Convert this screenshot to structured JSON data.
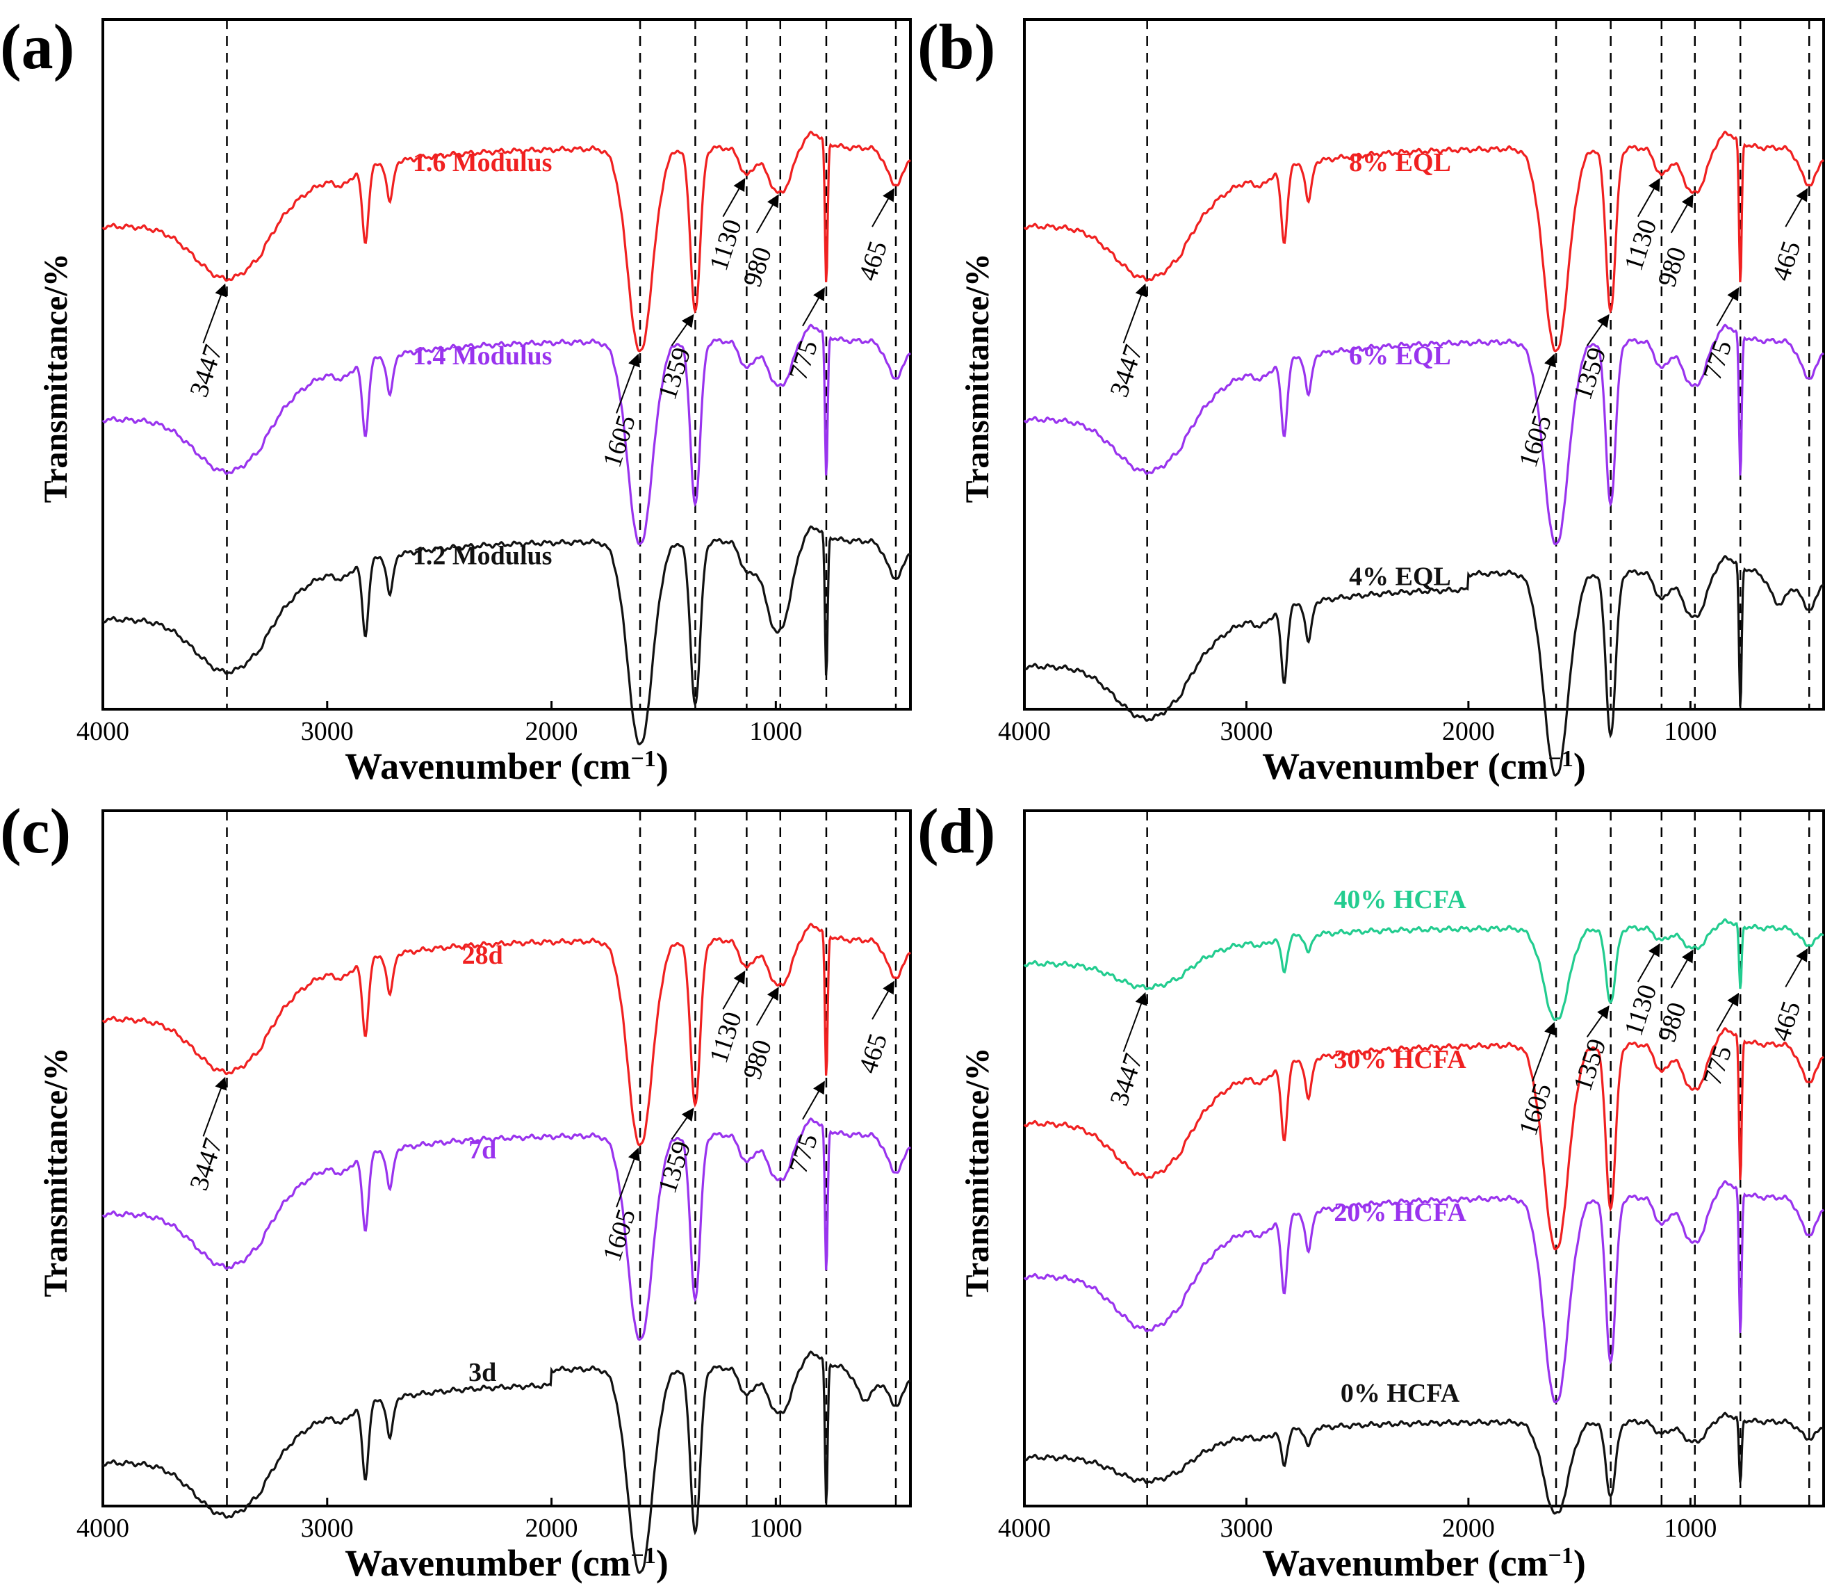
{
  "figure": {
    "type": "multi-panel FTIR spectra"
  },
  "colors": {
    "red": "#f02020",
    "purple": "#9933ee",
    "black": "#111111",
    "green": "#22cc8f"
  },
  "chart_data": [
    {
      "type": "line",
      "panel": "(a)",
      "xlabel": "Wavenumber (cm",
      "xlabel_sup": "−1",
      "xlabel_end": ")",
      "ylabel": "Transmittance/%",
      "xlim": [
        4000,
        400
      ],
      "x_ticks": [
        "4000",
        "3000",
        "2000",
        "1000"
      ],
      "reference_lines": [
        3447,
        1605,
        1359,
        1130,
        980,
        775,
        465
      ],
      "annotations": [
        {
          "text": "3447",
          "x": 3447,
          "dy": 150
        },
        {
          "text": "1605",
          "x": 1605,
          "dy": 150
        },
        {
          "text": "1359",
          "x": 1359,
          "dy": 110
        },
        {
          "text": "1130",
          "x": 1130,
          "dy": 120
        },
        {
          "text": "980",
          "x": 980,
          "dy": 120
        },
        {
          "text": "775",
          "x": 775,
          "dy": 120
        },
        {
          "text": "465",
          "x": 465,
          "dy": 120
        }
      ],
      "series": [
        {
          "name": "1.6 Modulus",
          "color": "red",
          "offset": 0.7,
          "style": "a"
        },
        {
          "name": "1.4 Modulus",
          "color": "purple",
          "offset": 0.42,
          "style": "a"
        },
        {
          "name": "1.2 Modulus",
          "color": "black",
          "offset": 0.13,
          "style": "b"
        }
      ]
    },
    {
      "type": "line",
      "panel": "(b)",
      "xlabel": "Wavenumber (cm",
      "xlabel_sup": "−1",
      "xlabel_end": ")",
      "ylabel": "Transmittance/%",
      "xlim": [
        4000,
        400
      ],
      "x_ticks": [
        "4000",
        "3000",
        "2000",
        "1000"
      ],
      "reference_lines": [
        3447,
        1605,
        1359,
        1130,
        980,
        775,
        465
      ],
      "annotations": [
        {
          "text": "3447",
          "x": 3447,
          "dy": 150
        },
        {
          "text": "1605",
          "x": 1605,
          "dy": 150
        },
        {
          "text": "1359",
          "x": 1359,
          "dy": 110
        },
        {
          "text": "1130",
          "x": 1130,
          "dy": 120
        },
        {
          "text": "980",
          "x": 980,
          "dy": 120
        },
        {
          "text": "775",
          "x": 775,
          "dy": 120
        },
        {
          "text": "465",
          "x": 465,
          "dy": 120
        }
      ],
      "series": [
        {
          "name": "8% EQL",
          "color": "red",
          "offset": 0.7,
          "style": "a"
        },
        {
          "name": "6% EQL",
          "color": "purple",
          "offset": 0.42,
          "style": "a"
        },
        {
          "name": "4% EQL",
          "color": "black",
          "offset": 0.1,
          "style": "c"
        }
      ]
    },
    {
      "type": "line",
      "panel": "(c)",
      "xlabel": "Wavenumber (cm",
      "xlabel_sup": "−1",
      "xlabel_end": ")",
      "ylabel": "Transmittance/%",
      "xlim": [
        4000,
        400
      ],
      "x_ticks": [
        "4000",
        "3000",
        "2000",
        "1000"
      ],
      "reference_lines": [
        3447,
        1605,
        1359,
        1130,
        980,
        775,
        465
      ],
      "annotations": [
        {
          "text": "3447",
          "x": 3447,
          "dy": 150
        },
        {
          "text": "1605",
          "x": 1605,
          "dy": 150
        },
        {
          "text": "1359",
          "x": 1359,
          "dy": 110
        },
        {
          "text": "1130",
          "x": 1130,
          "dy": 120
        },
        {
          "text": "980",
          "x": 980,
          "dy": 120
        },
        {
          "text": "775",
          "x": 775,
          "dy": 120
        },
        {
          "text": "465",
          "x": 465,
          "dy": 120
        }
      ],
      "series": [
        {
          "name": "28d",
          "color": "red",
          "offset": 0.7,
          "style": "a"
        },
        {
          "name": "7d",
          "color": "purple",
          "offset": 0.42,
          "style": "a"
        },
        {
          "name": "3d",
          "color": "black",
          "offset": 0.1,
          "style": "c"
        }
      ]
    },
    {
      "type": "line",
      "panel": "(d)",
      "xlabel": "Wavenumber (cm",
      "xlabel_sup": "−1",
      "xlabel_end": ")",
      "ylabel": "Transmittance/%",
      "xlim": [
        4000,
        400
      ],
      "x_ticks": [
        "4000",
        "3000",
        "2000",
        "1000"
      ],
      "reference_lines": [
        3447,
        1605,
        1359,
        1130,
        980,
        775,
        465
      ],
      "annotations": [
        {
          "text": "3447",
          "x": 3447,
          "dy": 150
        },
        {
          "text": "1605",
          "x": 1605,
          "dy": 150
        },
        {
          "text": "1359",
          "x": 1359,
          "dy": 110
        },
        {
          "text": "1130",
          "x": 1130,
          "dy": 120
        },
        {
          "text": "980",
          "x": 980,
          "dy": 120
        },
        {
          "text": "775",
          "x": 775,
          "dy": 120
        },
        {
          "text": "465",
          "x": 465,
          "dy": 120
        }
      ],
      "series": [
        {
          "name": "40% HCFA",
          "color": "green",
          "offset": 0.78,
          "style": "d"
        },
        {
          "name": "30% HCFA",
          "color": "red",
          "offset": 0.55,
          "style": "a"
        },
        {
          "name": "20% HCFA",
          "color": "purple",
          "offset": 0.33,
          "style": "a"
        },
        {
          "name": "0% HCFA",
          "color": "black",
          "offset": 0.07,
          "style": "d"
        }
      ]
    }
  ]
}
